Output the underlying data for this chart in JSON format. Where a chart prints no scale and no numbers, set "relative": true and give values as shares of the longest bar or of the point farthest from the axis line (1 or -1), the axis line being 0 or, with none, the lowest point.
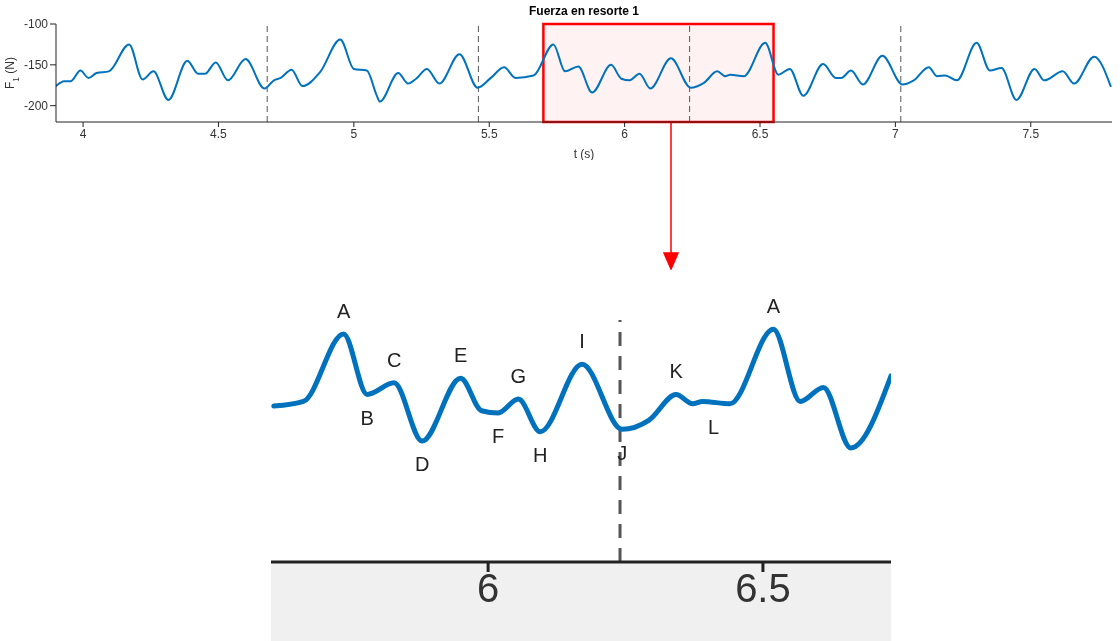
{
  "chart_data": [
    {
      "type": "line",
      "title": "Fuerza en resorte 1",
      "xlabel": "t (s)",
      "ylabel": "F$_{1}$ (N)",
      "color": "#0072bd",
      "x": [
        3.9,
        3.93,
        3.955,
        3.99,
        4.02,
        4.05,
        4.095,
        4.17,
        4.22,
        4.26,
        4.315,
        4.385,
        4.425,
        4.45,
        4.49,
        4.535,
        4.6,
        4.67,
        4.705,
        4.73,
        4.77,
        4.81,
        4.875,
        4.95,
        5.0,
        5.048,
        5.085,
        5.096,
        5.164,
        5.2,
        5.23,
        5.27,
        5.316,
        5.39,
        5.457,
        5.506,
        5.555,
        5.597,
        5.664,
        5.737,
        5.78,
        5.829,
        5.88,
        5.95,
        5.988,
        6.018,
        6.055,
        6.095,
        6.171,
        6.244,
        6.293,
        6.342,
        6.372,
        6.39,
        6.44,
        6.519,
        6.568,
        6.61,
        6.66,
        6.733,
        6.78,
        6.8,
        6.836,
        6.88,
        6.952,
        7.026,
        7.068,
        7.123,
        7.154,
        7.184,
        7.227,
        7.3,
        7.349,
        7.392,
        7.447,
        7.514,
        7.55,
        7.618,
        7.66,
        7.734,
        7.795
      ],
      "values": [
        -176,
        -170,
        -170,
        -157,
        -166,
        -160,
        -158,
        -125,
        -168,
        -158,
        -193,
        -145,
        -161,
        -161,
        -147,
        -169,
        -143,
        -179,
        -169,
        -166,
        -156,
        -176,
        -159,
        -119,
        -155,
        -157,
        -188,
        -195,
        -160,
        -173,
        -167,
        -155,
        -173,
        -137,
        -178,
        -166,
        -153,
        -166,
        -163,
        -125,
        -158,
        -152,
        -184,
        -150,
        -167,
        -169,
        -161,
        -179,
        -142,
        -178,
        -172,
        -158,
        -164,
        -162,
        -164,
        -123,
        -162,
        -155,
        -188,
        -149,
        -166,
        -166,
        -157,
        -174,
        -139,
        -174,
        -169,
        -153,
        -164,
        -163,
        -169,
        -123,
        -157,
        -154,
        -193,
        -155,
        -169,
        -158,
        -173,
        -140,
        -176
      ],
      "xlim": [
        3.9,
        7.8
      ],
      "ylim": [
        -220,
        -100
      ],
      "xticks": [
        4,
        4.5,
        5,
        5.5,
        6,
        6.5,
        7,
        7.5
      ],
      "yticks": [
        -100,
        -150,
        -200
      ],
      "ref_lines": [
        {
          "axis": "x",
          "value": 4.68,
          "line_style": "dashed"
        },
        {
          "axis": "x",
          "value": 5.46,
          "line_style": "dashed"
        },
        {
          "axis": "x",
          "value": 6.24,
          "line_style": "dashed"
        },
        {
          "axis": "x",
          "value": 7.02,
          "line_style": "dashed"
        }
      ],
      "bands": [
        {
          "axis": "x",
          "from": 5.7,
          "to": 6.55,
          "color": "#ff0000"
        }
      ]
    },
    {
      "type": "line",
      "color": "#0072bd",
      "relative": true,
      "x": [
        5.61,
        5.664,
        5.737,
        5.78,
        5.829,
        5.88,
        5.95,
        5.988,
        6.018,
        6.055,
        6.095,
        6.171,
        6.244,
        6.293,
        6.342,
        6.372,
        6.39,
        6.44,
        6.519,
        6.568,
        6.61,
        6.66,
        6.733
      ],
      "values": [
        0.67,
        0.69,
        0.98,
        0.72,
        0.77,
        0.52,
        0.79,
        0.65,
        0.64,
        0.7,
        0.56,
        0.85,
        0.57,
        0.61,
        0.72,
        0.68,
        0.69,
        0.68,
        1,
        0.69,
        0.75,
        0.49,
        0.8
      ],
      "xlim": [
        5.605,
        6.733
      ],
      "xticks": [
        6,
        6.5
      ],
      "ref_lines": [
        {
          "axis": "x",
          "value": 6.24,
          "line_style": "dashed"
        }
      ],
      "annotations": [
        {
          "text": "A",
          "x": 5.737,
          "y": 0.98
        },
        {
          "text": "B",
          "x": 5.78,
          "y": 0.72
        },
        {
          "text": "C",
          "x": 5.829,
          "y": 0.77
        },
        {
          "text": "D",
          "x": 5.88,
          "y": 0.52
        },
        {
          "text": "E",
          "x": 5.95,
          "y": 0.79
        },
        {
          "text": "F",
          "x": 6.018,
          "y": 0.64
        },
        {
          "text": "G",
          "x": 6.055,
          "y": 0.7
        },
        {
          "text": "H",
          "x": 6.095,
          "y": 0.56
        },
        {
          "text": "I",
          "x": 6.171,
          "y": 0.85
        },
        {
          "text": "J",
          "x": 6.244,
          "y": 0.57
        },
        {
          "text": "K",
          "x": 6.342,
          "y": 0.72
        },
        {
          "text": "L",
          "x": 6.41,
          "y": 0.68
        },
        {
          "text": "A",
          "x": 6.519,
          "y": 1
        }
      ]
    }
  ]
}
